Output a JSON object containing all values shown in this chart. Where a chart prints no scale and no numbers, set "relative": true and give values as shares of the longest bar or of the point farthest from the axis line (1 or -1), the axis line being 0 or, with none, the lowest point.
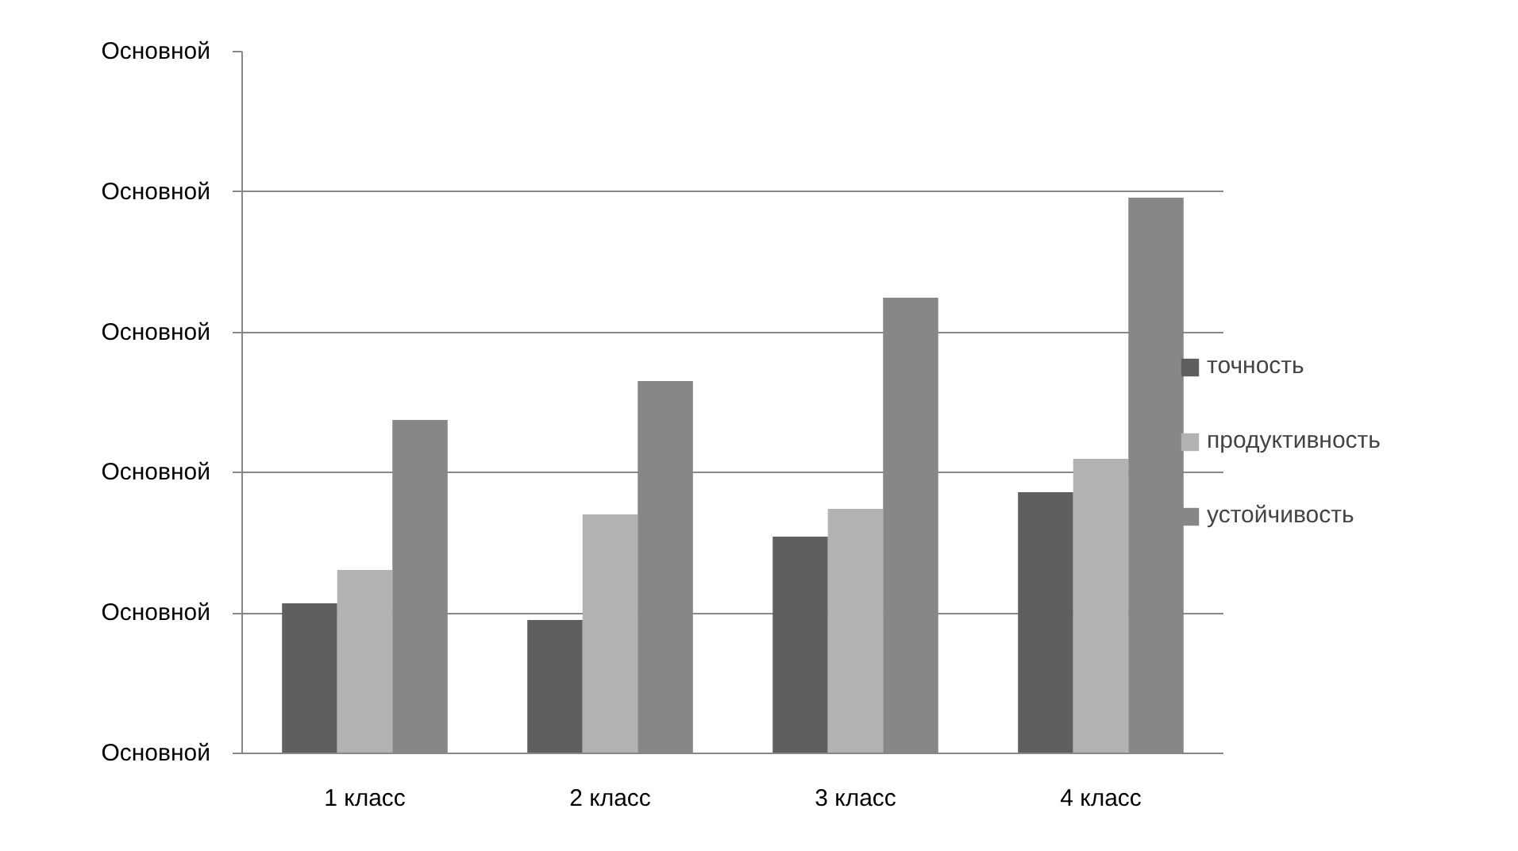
{
  "chart_data": {
    "type": "bar",
    "relative": true,
    "categories": [
      "1 класс",
      "2 класс",
      "3 класс",
      "4 класс"
    ],
    "series": [
      {
        "name": "точность",
        "color": "#5f5f5f",
        "values": [
          0.27,
          0.24,
          0.39,
          0.47
        ]
      },
      {
        "name": "продуктивность",
        "color": "#b2b2b2",
        "values": [
          0.33,
          0.43,
          0.44,
          0.53
        ]
      },
      {
        "name": "устойчивость",
        "color": "#878787",
        "values": [
          0.6,
          0.67,
          0.82,
          1.0
        ]
      }
    ],
    "annotations": [
      "Основной",
      "Основной",
      "Основной",
      "Основной",
      "Основной",
      "Основной"
    ],
    "grid": "y",
    "legend": "right"
  }
}
